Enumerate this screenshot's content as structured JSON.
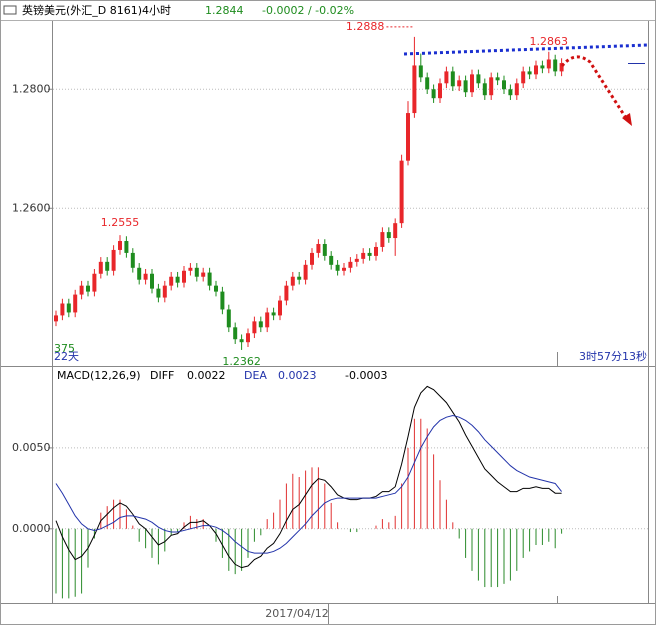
{
  "header": {
    "symbol": "英镑美元(外汇_D 8161)4小时",
    "price": "1.2844",
    "change": "-0.0002 / -0.02%"
  },
  "chart_data": [
    {
      "type": "candlestick",
      "up_color": "#e8262a",
      "down_color": "#1e8c1e",
      "ylim": [
        1.2335,
        1.2913
      ],
      "yticks": [
        {
          "value": 1.28,
          "label": "1.2800"
        },
        {
          "value": 1.26,
          "label": "1.2600"
        }
      ],
      "grid": true,
      "candles": [
        [
          1.241,
          1.2428,
          1.2402,
          1.242
        ],
        [
          1.242,
          1.2448,
          1.2412,
          1.244
        ],
        [
          1.244,
          1.2448,
          1.2417,
          1.2425
        ],
        [
          1.2425,
          1.2463,
          1.2417,
          1.2455
        ],
        [
          1.2455,
          1.2478,
          1.2447,
          1.247
        ],
        [
          1.247,
          1.2478,
          1.2452,
          1.246
        ],
        [
          1.246,
          1.2498,
          1.2452,
          1.249
        ],
        [
          1.249,
          1.2518,
          1.2482,
          1.251
        ],
        [
          1.251,
          1.2518,
          1.2487,
          1.2495
        ],
        [
          1.2495,
          1.2538,
          1.2487,
          1.253
        ],
        [
          1.253,
          1.2555,
          1.2522,
          1.2545
        ],
        [
          1.2545,
          1.2553,
          1.2517,
          1.2525
        ],
        [
          1.2525,
          1.2533,
          1.2492,
          1.25
        ],
        [
          1.25,
          1.2508,
          1.2472,
          1.248
        ],
        [
          1.248,
          1.2498,
          1.2472,
          1.249
        ],
        [
          1.249,
          1.2498,
          1.2457,
          1.2465
        ],
        [
          1.2465,
          1.2473,
          1.2442,
          1.245
        ],
        [
          1.245,
          1.2478,
          1.2442,
          1.247
        ],
        [
          1.247,
          1.2493,
          1.2462,
          1.2485
        ],
        [
          1.2485,
          1.2493,
          1.2467,
          1.2475
        ],
        [
          1.2475,
          1.2503,
          1.2467,
          1.2495
        ],
        [
          1.2495,
          1.2508,
          1.2487,
          1.25
        ],
        [
          1.25,
          1.2508,
          1.2477,
          1.2485
        ],
        [
          1.2485,
          1.25,
          1.2477,
          1.2492
        ],
        [
          1.2492,
          1.25,
          1.2462,
          1.247
        ],
        [
          1.247,
          1.2478,
          1.2452,
          1.246
        ],
        [
          1.246,
          1.2468,
          1.2422,
          1.243
        ],
        [
          1.243,
          1.2438,
          1.2392,
          1.24
        ],
        [
          1.24,
          1.2408,
          1.2372,
          1.238
        ],
        [
          1.238,
          1.2388,
          1.2362,
          1.2375
        ],
        [
          1.2375,
          1.2398,
          1.2367,
          1.239
        ],
        [
          1.239,
          1.2418,
          1.2382,
          1.241
        ],
        [
          1.241,
          1.2418,
          1.2392,
          1.24
        ],
        [
          1.24,
          1.2433,
          1.2392,
          1.2425
        ],
        [
          1.2425,
          1.2433,
          1.2412,
          1.242
        ],
        [
          1.242,
          1.2453,
          1.2412,
          1.2445
        ],
        [
          1.2445,
          1.2478,
          1.2437,
          1.247
        ],
        [
          1.247,
          1.2493,
          1.2462,
          1.2485
        ],
        [
          1.2485,
          1.2493,
          1.2472,
          1.248
        ],
        [
          1.248,
          1.2513,
          1.2472,
          1.2505
        ],
        [
          1.2505,
          1.2533,
          1.2497,
          1.2525
        ],
        [
          1.2525,
          1.2548,
          1.2517,
          1.254
        ],
        [
          1.254,
          1.2548,
          1.2512,
          1.252
        ],
        [
          1.252,
          1.2528,
          1.2497,
          1.2505
        ],
        [
          1.2505,
          1.2513,
          1.2487,
          1.2495
        ],
        [
          1.2495,
          1.2508,
          1.2487,
          1.25
        ],
        [
          1.25,
          1.2518,
          1.2492,
          1.251
        ],
        [
          1.251,
          1.2523,
          1.2502,
          1.2515
        ],
        [
          1.2515,
          1.2533,
          1.2507,
          1.2525
        ],
        [
          1.2525,
          1.2533,
          1.2512,
          1.252
        ],
        [
          1.252,
          1.2543,
          1.2512,
          1.2535
        ],
        [
          1.2535,
          1.2568,
          1.2527,
          1.256
        ],
        [
          1.256,
          1.2568,
          1.2542,
          1.255
        ],
        [
          1.255,
          1.2583,
          1.252,
          1.2575
        ],
        [
          1.2575,
          1.269,
          1.2567,
          1.268
        ],
        [
          1.268,
          1.278,
          1.2672,
          1.276
        ],
        [
          1.276,
          1.2888,
          1.2752,
          1.284
        ],
        [
          1.284,
          1.286,
          1.2812,
          1.282
        ],
        [
          1.282,
          1.2828,
          1.2792,
          1.28
        ],
        [
          1.28,
          1.2808,
          1.2777,
          1.2785
        ],
        [
          1.2785,
          1.2818,
          1.2777,
          1.281
        ],
        [
          1.281,
          1.2838,
          1.2802,
          1.283
        ],
        [
          1.283,
          1.2838,
          1.2797,
          1.2805
        ],
        [
          1.2805,
          1.2823,
          1.2797,
          1.2815
        ],
        [
          1.2815,
          1.2823,
          1.2787,
          1.2795
        ],
        [
          1.2795,
          1.2833,
          1.2787,
          1.2825
        ],
        [
          1.2825,
          1.2833,
          1.2802,
          1.281
        ],
        [
          1.281,
          1.2818,
          1.2782,
          1.279
        ],
        [
          1.279,
          1.2828,
          1.2782,
          1.282
        ],
        [
          1.282,
          1.2828,
          1.2807,
          1.2815
        ],
        [
          1.2815,
          1.2823,
          1.2792,
          1.28
        ],
        [
          1.28,
          1.2808,
          1.2782,
          1.279
        ],
        [
          1.279,
          1.2818,
          1.2782,
          1.281
        ],
        [
          1.281,
          1.2838,
          1.2802,
          1.283
        ],
        [
          1.283,
          1.2838,
          1.2817,
          1.2825
        ],
        [
          1.2825,
          1.2848,
          1.2817,
          1.284
        ],
        [
          1.284,
          1.2848,
          1.2827,
          1.2835
        ],
        [
          1.2835,
          1.2863,
          1.2827,
          1.285
        ],
        [
          1.285,
          1.2858,
          1.2822,
          1.283
        ],
        [
          1.283,
          1.2852,
          1.2822,
          1.2844
        ]
      ]
    },
    {
      "type": "macd",
      "title": "MACD(12,26,9)",
      "ylim": [
        -0.0044,
        0.01
      ],
      "yticks": [
        {
          "value": 0.005,
          "label": "0.0050"
        },
        {
          "value": 0,
          "label": "0.0000"
        }
      ],
      "grid": true,
      "series": [
        {
          "name": "DIFF",
          "color": "#000000",
          "values": [
            0.0005,
            -0.0005,
            -0.0013,
            -0.0019,
            -0.0017,
            -0.0012,
            -0.0004,
            0.0005,
            0.0009,
            0.0013,
            0.0016,
            0.0014,
            0.0009,
            0.0003,
            0.0,
            -0.0005,
            -0.001,
            -0.0008,
            -0.0004,
            -0.0003,
            0.0001,
            0.0004,
            0.0004,
            0.0005,
            0.0002,
            -0.0003,
            -0.001,
            -0.0017,
            -0.0022,
            -0.0024,
            -0.0023,
            -0.0019,
            -0.0017,
            -0.0012,
            -0.0009,
            -0.0003,
            0.0005,
            0.0012,
            0.0015,
            0.0021,
            0.0027,
            0.0031,
            0.003,
            0.0026,
            0.0021,
            0.0019,
            0.0018,
            0.0018,
            0.0019,
            0.0019,
            0.002,
            0.0023,
            0.0023,
            0.0026,
            0.004,
            0.0057,
            0.0075,
            0.0084,
            0.0088,
            0.0086,
            0.0082,
            0.0078,
            0.0072,
            0.0066,
            0.0058,
            0.0051,
            0.0044,
            0.0037,
            0.0033,
            0.0029,
            0.0026,
            0.0023,
            0.0023,
            0.0025,
            0.0025,
            0.0026,
            0.0025,
            0.0025,
            0.0022,
            0.0022
          ]
        },
        {
          "name": "DEA",
          "color": "#2233aa",
          "values": [
            0.0028,
            0.0022,
            0.0015,
            0.0008,
            0.0003,
            0.0,
            -0.0001,
            0.0,
            0.0002,
            0.0004,
            0.0007,
            0.0008,
            0.0008,
            0.0007,
            0.0006,
            0.0004,
            0.0001,
            -0.0001,
            -0.0002,
            -0.0002,
            -0.0001,
            0.0,
            0.0001,
            0.0002,
            0.0002,
            0.0001,
            -0.0001,
            -0.0004,
            -0.0008,
            -0.0011,
            -0.0014,
            -0.0015,
            -0.0015,
            -0.0015,
            -0.0014,
            -0.0012,
            -0.0009,
            -0.0005,
            -0.0001,
            0.0003,
            0.0008,
            0.0012,
            0.0016,
            0.0018,
            0.0019,
            0.0019,
            0.0019,
            0.0019,
            0.0019,
            0.0019,
            0.0019,
            0.002,
            0.0021,
            0.0022,
            0.0026,
            0.0032,
            0.0041,
            0.005,
            0.0057,
            0.0063,
            0.0067,
            0.0069,
            0.007,
            0.0069,
            0.0067,
            0.0064,
            0.006,
            0.0055,
            0.0051,
            0.0047,
            0.0043,
            0.0039,
            0.0036,
            0.0034,
            0.0032,
            0.0031,
            0.003,
            0.0029,
            0.0028,
            0.0023
          ]
        }
      ],
      "histogram": {
        "up_color": "#e03030",
        "down_color": "#2a8a2a",
        "values": [
          -0.004,
          -0.0043,
          -0.0043,
          -0.0042,
          -0.004,
          -0.0024,
          -0.0006,
          0.001,
          0.0014,
          0.0018,
          0.0018,
          0.0012,
          0.0002,
          -0.0008,
          -0.0012,
          -0.0018,
          -0.0022,
          -0.0014,
          -0.0004,
          -0.0002,
          0.0004,
          0.0008,
          0.0006,
          0.0006,
          0,
          -0.0008,
          -0.0018,
          -0.0026,
          -0.0028,
          -0.0026,
          -0.0018,
          -0.0008,
          -0.0004,
          0.0006,
          0.001,
          0.0018,
          0.0028,
          0.0034,
          0.0032,
          0.0036,
          0.0038,
          0.0038,
          0.0028,
          0.0016,
          0.0004,
          0,
          -0.0002,
          -0.0002,
          0,
          0,
          0.0002,
          0.0006,
          0.0004,
          0.0008,
          0.0028,
          0.005,
          0.0068,
          0.0068,
          0.0062,
          0.0046,
          0.003,
          0.0018,
          0.0004,
          -0.0006,
          -0.0018,
          -0.0026,
          -0.0032,
          -0.0036,
          -0.0036,
          -0.0036,
          -0.0034,
          -0.0032,
          -0.0026,
          -0.0018,
          -0.0014,
          -0.001,
          -0.001,
          -0.0008,
          -0.0012,
          -0.0003
        ]
      }
    }
  ],
  "status": {
    "left_value": "375",
    "period": "22天",
    "countdown": "3时57分13秒",
    "date": "2017/04/12"
  }
}
